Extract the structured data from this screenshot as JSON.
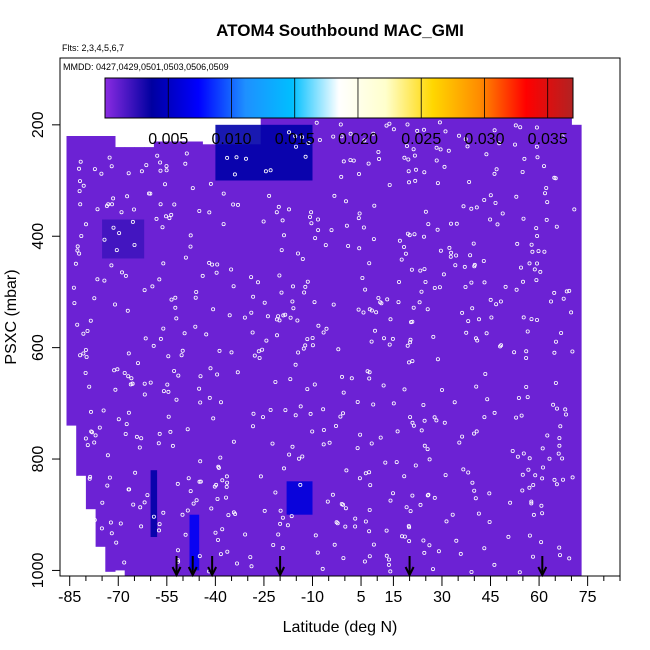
{
  "chart_data": {
    "type": "heatmap",
    "title": "ATOM4 Southbound MAC_GMI",
    "subtitle_flights": "Flts: 2,3,4,5,6,7",
    "subtitle_dates": "MMDD: 0427,0429,0501,0503,0506,0509",
    "xlabel": "Latitude (deg N)",
    "ylabel": "PSXC (mbar)",
    "xlim": [
      -88,
      85
    ],
    "ylim": [
      1010,
      80
    ],
    "x_ticks": [
      -85,
      -70,
      -55,
      -40,
      -25,
      -10,
      5,
      15,
      30,
      45,
      60,
      75
    ],
    "x_tick_labels": [
      "-85",
      "-70",
      "-55",
      "-40",
      "-25",
      "-10",
      "5",
      "15",
      "30",
      "45",
      "60",
      "75"
    ],
    "y_ticks": [
      200,
      400,
      600,
      800,
      1000
    ],
    "y_tick_labels": [
      "200",
      "400",
      "600",
      "800",
      "1000"
    ],
    "colorbar": {
      "range": [
        0.0,
        0.037
      ],
      "ticks": [
        0.005,
        0.01,
        0.015,
        0.02,
        0.025,
        0.03,
        0.035
      ],
      "tick_labels": [
        "0.005",
        "0.010",
        "0.015",
        "0.020",
        "0.025",
        "0.030",
        "0.035"
      ],
      "colors": [
        "#8a2be2",
        "#0000a0",
        "#0000ff",
        "#1e90ff",
        "#00bfff",
        "#ffffff",
        "#ffffcc",
        "#ffd700",
        "#ff8c00",
        "#ff0000",
        "#b22222"
      ]
    },
    "background_value": 0.0008,
    "background_color": "#8a2be2",
    "anomalies": [
      {
        "lat": [
          -40,
          -10
        ],
        "p": [
          200,
          300
        ],
        "value": 0.004
      },
      {
        "lat": [
          -75,
          -62
        ],
        "p": [
          370,
          440
        ],
        "value": 0.002
      },
      {
        "lat": [
          -48,
          -45
        ],
        "p": [
          900,
          1000
        ],
        "value": 0.007
      },
      {
        "lat": [
          -60,
          -58
        ],
        "p": [
          820,
          940
        ],
        "value": 0.004
      },
      {
        "lat": [
          -18,
          -10
        ],
        "p": [
          840,
          900
        ],
        "value": 0.006
      }
    ],
    "arrow_latitudes": [
      -52,
      -47,
      -41,
      -20,
      20,
      61
    ]
  }
}
